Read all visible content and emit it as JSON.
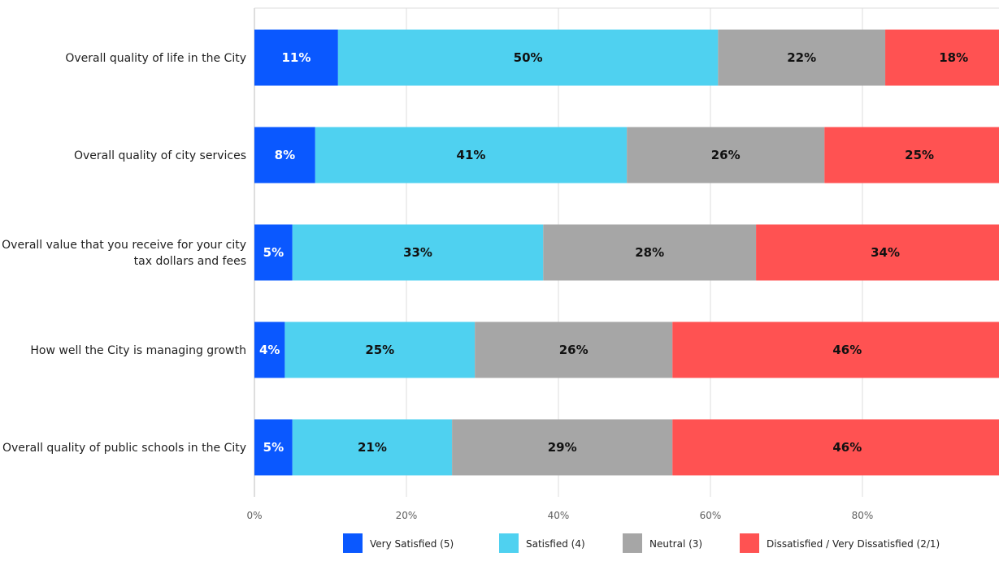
{
  "chart_data": {
    "type": "bar",
    "orientation": "horizontal",
    "stacked": true,
    "categories": [
      "Overall quality of life in the City",
      "Overall quality of city services",
      "Overall value that you receive for your city tax dollars and fees",
      "How well the City is managing growth",
      "Overall quality of public schools in the City"
    ],
    "category_label_lines": [
      [
        "Overall quality of life in the City"
      ],
      [
        "Overall quality of city services"
      ],
      [
        "Overall value that you receive for your city",
        "tax dollars and fees"
      ],
      [
        "How well the City is managing growth"
      ],
      [
        "Overall quality of public schools in the City"
      ]
    ],
    "series": [
      {
        "name": "Very Satisfied (5)",
        "color": "#0a58ff",
        "label_color": "#ffffff",
        "values": [
          11,
          8,
          5,
          4,
          5
        ]
      },
      {
        "name": "Satisfied (4)",
        "color": "#4fd1f0",
        "label_color": "#111111",
        "values": [
          50,
          41,
          33,
          25,
          21
        ]
      },
      {
        "name": "Neutral (3)",
        "color": "#a6a6a6",
        "label_color": "#111111",
        "values": [
          22,
          26,
          28,
          26,
          29
        ]
      },
      {
        "name": "Dissatisfied / Very Dissatisfied (2/1)",
        "color": "#ff5252",
        "label_color": "#111111",
        "values": [
          18,
          25,
          34,
          46,
          46
        ]
      }
    ],
    "value_suffix": "%",
    "xlim": [
      0,
      100
    ],
    "xticks": [
      0,
      20,
      40,
      60,
      80
    ],
    "xtick_labels": [
      "0%",
      "20%",
      "40%",
      "60%",
      "80%"
    ],
    "grid": true,
    "legend_position": "bottom",
    "title": "",
    "xlabel": "",
    "ylabel": ""
  }
}
